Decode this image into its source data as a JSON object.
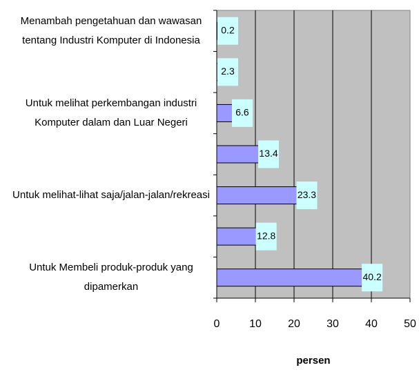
{
  "chart_data": {
    "type": "barh",
    "categories": [
      "Menambah pengetahuan dan wawasan tentang Industri Komputer di Indonesia",
      null,
      "Untuk melihat perkembangan industri Komputer dalam dan Luar Negeri",
      null,
      "Untuk melihat-lihat saja/jalan-jalan/rekreasi",
      null,
      "Untuk Membeli produk-produk yang dipamerkan"
    ],
    "values": [
      0.2,
      2.3,
      6.6,
      13.4,
      23.3,
      12.8,
      40.2
    ],
    "color": "#9999ff",
    "label_color": "#ccffff",
    "plot_background": "#c0c0c0",
    "xlim": [
      0,
      50
    ],
    "xticks": [
      0,
      10,
      20,
      30,
      40,
      50
    ],
    "xlabel": "persen",
    "grid": true
  }
}
